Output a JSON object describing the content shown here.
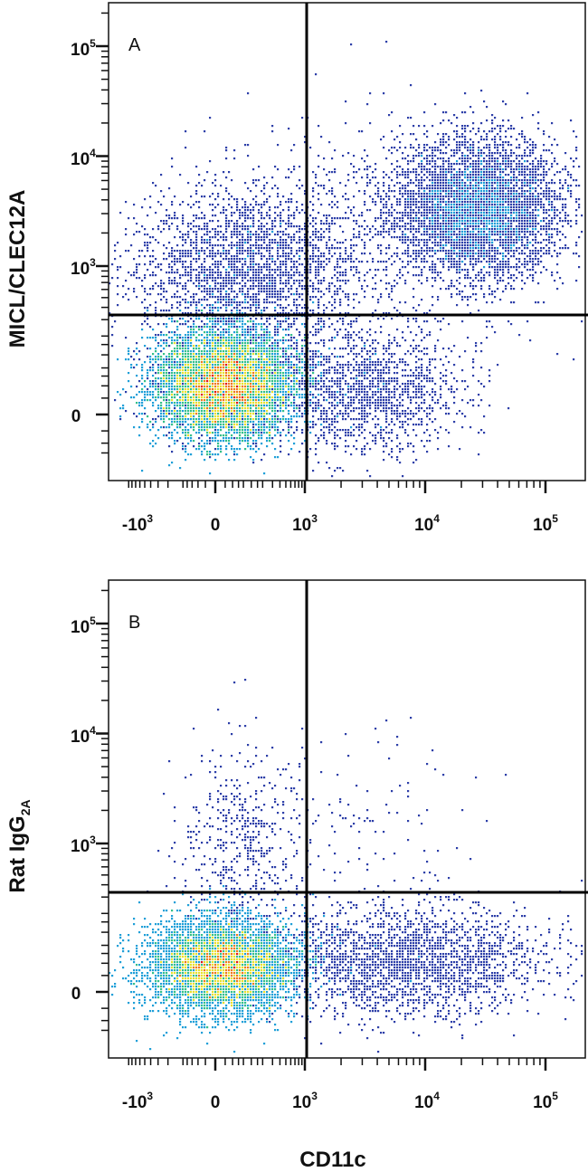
{
  "chart_data": [
    {
      "type": "scatter",
      "panel_label": "A",
      "xlabel": "CD11c",
      "ylabel": "MICL/CLEC12A",
      "x_scale": "biexponential",
      "y_scale": "biexponential",
      "x_tick_labels": [
        {
          "base": "-10",
          "exp": "3",
          "value": -1000
        },
        {
          "base": "0",
          "exp": "",
          "value": 0
        },
        {
          "base": "10",
          "exp": "3",
          "value": 1000
        },
        {
          "base": "10",
          "exp": "4",
          "value": 10000
        },
        {
          "base": "10",
          "exp": "5",
          "value": 100000
        }
      ],
      "y_tick_labels": [
        {
          "base": "0",
          "exp": "",
          "value": 0
        },
        {
          "base": "10",
          "exp": "3",
          "value": 1000
        },
        {
          "base": "10",
          "exp": "4",
          "value": 10000
        },
        {
          "base": "10",
          "exp": "5",
          "value": 100000
        }
      ],
      "quadrant_gate": {
        "x": 1200,
        "y": 400
      },
      "populations": [
        {
          "description": "main double-negative cluster",
          "center": {
            "x": 150,
            "y": 60
          },
          "approx_fraction": 0.78,
          "density": "high"
        },
        {
          "description": "CD11c+ MICL/CLEC12A+ cluster",
          "center": {
            "x": 30000,
            "y": 4500
          },
          "approx_fraction": 0.1,
          "density": "medium"
        },
        {
          "description": "MICL/CLEC12A+ CD11c- spread",
          "center": {
            "x": 300,
            "y": 1500
          },
          "approx_fraction": 0.06,
          "density": "low"
        },
        {
          "description": "CD11c+ MICL/CLEC12A- spread",
          "center": {
            "x": 3000,
            "y": 50
          },
          "approx_fraction": 0.06,
          "density": "low"
        }
      ]
    },
    {
      "type": "scatter",
      "panel_label": "B",
      "xlabel": "CD11c",
      "ylabel": "Rat IgG2A",
      "ylabel_parts": {
        "main": "Rat IgG",
        "sub": "2A"
      },
      "x_scale": "biexponential",
      "y_scale": "biexponential",
      "x_tick_labels": [
        {
          "base": "-10",
          "exp": "3",
          "value": -1000
        },
        {
          "base": "0",
          "exp": "",
          "value": 0
        },
        {
          "base": "10",
          "exp": "3",
          "value": 1000
        },
        {
          "base": "10",
          "exp": "4",
          "value": 10000
        },
        {
          "base": "10",
          "exp": "5",
          "value": 100000
        }
      ],
      "y_tick_labels": [
        {
          "base": "0",
          "exp": "",
          "value": 0
        },
        {
          "base": "10",
          "exp": "3",
          "value": 1000
        },
        {
          "base": "10",
          "exp": "4",
          "value": 10000
        },
        {
          "base": "10",
          "exp": "5",
          "value": 100000
        }
      ],
      "quadrant_gate": {
        "x": 1200,
        "y": 400
      },
      "populations": [
        {
          "description": "main double-negative cluster",
          "center": {
            "x": 150,
            "y": 30
          },
          "approx_fraction": 0.85,
          "density": "high"
        },
        {
          "description": "CD11c+ isotype-negative spread",
          "center": {
            "x": 6000,
            "y": 40
          },
          "approx_fraction": 0.1,
          "density": "low"
        },
        {
          "description": "sparse isotype-positive events",
          "center": {
            "x": 300,
            "y": 1000
          },
          "approx_fraction": 0.05,
          "density": "very low"
        }
      ]
    }
  ],
  "colors": {
    "density_low": "#2d3fa8",
    "density_mid_low": "#1f9fd8",
    "density_mid": "#35c08a",
    "density_mid_high": "#e8e030",
    "density_high": "#ee7a1c",
    "density_peak": "#e01818",
    "gate_line": "#000000",
    "axis": "#111111"
  }
}
